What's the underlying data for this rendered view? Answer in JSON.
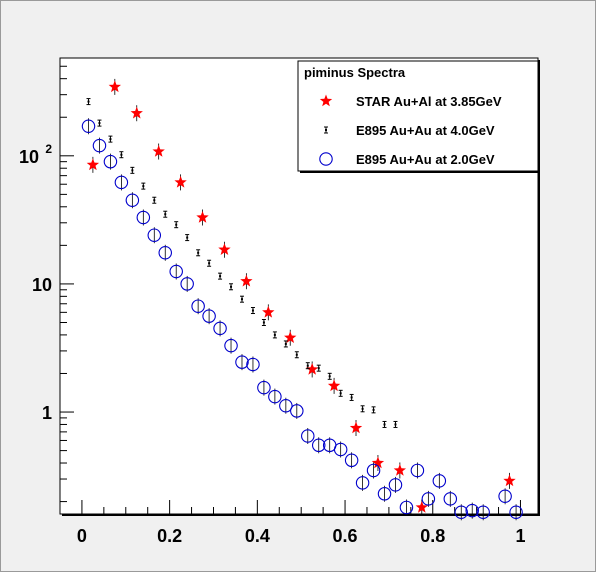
{
  "chart_data": {
    "type": "scatter",
    "title": "",
    "xlabel": "",
    "ylabel": "",
    "xlim": [
      -0.05,
      1.04
    ],
    "ylim": [
      0.16,
      580
    ],
    "yscale": "log",
    "grid": false,
    "legend_placement": "top-right",
    "x_ticks": [
      {
        "v": 0,
        "label": "0"
      },
      {
        "v": 0.2,
        "label": "0.2"
      },
      {
        "v": 0.4,
        "label": "0.4"
      },
      {
        "v": 0.6,
        "label": "0.6"
      },
      {
        "v": 0.8,
        "label": "0.8"
      },
      {
        "v": 1,
        "label": "1"
      }
    ],
    "y_ticks": [
      {
        "v": 1,
        "label": "1"
      },
      {
        "v": 10,
        "label": "10"
      },
      {
        "v": 100,
        "label": "10",
        "exp": "2"
      }
    ],
    "legend": {
      "title": "piminus Spectra",
      "entries": [
        {
          "label": "STAR Au+Al at 3.85GeV",
          "marker": "star",
          "color": "#ff0000"
        },
        {
          "label": "E895 Au+Au at 4.0GeV",
          "marker": "dot",
          "color": "#000000"
        },
        {
          "label": "E895 Au+Au at 2.0GeV",
          "marker": "circle",
          "color": "#0000cc"
        }
      ]
    },
    "series": [
      {
        "name": "STAR Au+Al at 3.85GeV",
        "marker": "star",
        "color": "#ff0000",
        "points": [
          [
            0.025,
            85
          ],
          [
            0.075,
            345
          ],
          [
            0.125,
            215
          ],
          [
            0.175,
            108
          ],
          [
            0.225,
            62
          ],
          [
            0.275,
            33
          ],
          [
            0.325,
            18.5
          ],
          [
            0.375,
            10.5
          ],
          [
            0.425,
            6.0
          ],
          [
            0.475,
            3.8
          ],
          [
            0.525,
            2.15
          ],
          [
            0.575,
            1.6
          ],
          [
            0.625,
            0.75
          ],
          [
            0.675,
            0.4
          ],
          [
            0.725,
            0.35
          ],
          [
            0.775,
            0.18
          ],
          [
            0.975,
            0.29
          ]
        ]
      },
      {
        "name": "E895 Au+Au at 4.0GeV",
        "marker": "dot",
        "color": "#000000",
        "points": [
          [
            0.015,
            265
          ],
          [
            0.04,
            180
          ],
          [
            0.065,
            135
          ],
          [
            0.09,
            102
          ],
          [
            0.115,
            77
          ],
          [
            0.14,
            58
          ],
          [
            0.165,
            45
          ],
          [
            0.19,
            35
          ],
          [
            0.215,
            29
          ],
          [
            0.24,
            23
          ],
          [
            0.265,
            17.5
          ],
          [
            0.29,
            14.5
          ],
          [
            0.315,
            11.5
          ],
          [
            0.34,
            9.5
          ],
          [
            0.365,
            7.6
          ],
          [
            0.39,
            6.2
          ],
          [
            0.415,
            5.0
          ],
          [
            0.44,
            4.0
          ],
          [
            0.465,
            3.4
          ],
          [
            0.49,
            2.8
          ],
          [
            0.515,
            2.3
          ],
          [
            0.54,
            2.2
          ],
          [
            0.565,
            1.9
          ],
          [
            0.59,
            1.4
          ],
          [
            0.615,
            1.3
          ],
          [
            0.64,
            1.06
          ],
          [
            0.665,
            1.04
          ],
          [
            0.69,
            0.8
          ],
          [
            0.715,
            0.8
          ]
        ]
      },
      {
        "name": "E895 Au+Au at 2.0GeV",
        "marker": "circle",
        "color": "#0000cc",
        "points": [
          [
            0.015,
            170
          ],
          [
            0.04,
            120
          ],
          [
            0.065,
            90
          ],
          [
            0.09,
            62
          ],
          [
            0.115,
            45
          ],
          [
            0.14,
            33
          ],
          [
            0.165,
            24
          ],
          [
            0.19,
            17.5
          ],
          [
            0.215,
            12.5
          ],
          [
            0.24,
            10.0
          ],
          [
            0.265,
            6.7
          ],
          [
            0.29,
            5.6
          ],
          [
            0.315,
            4.5
          ],
          [
            0.34,
            3.3
          ],
          [
            0.365,
            2.45
          ],
          [
            0.39,
            2.35
          ],
          [
            0.415,
            1.55
          ],
          [
            0.44,
            1.32
          ],
          [
            0.465,
            1.12
          ],
          [
            0.49,
            1.02
          ],
          [
            0.515,
            0.65
          ],
          [
            0.54,
            0.55
          ],
          [
            0.565,
            0.55
          ],
          [
            0.59,
            0.51
          ],
          [
            0.615,
            0.42
          ],
          [
            0.64,
            0.28
          ],
          [
            0.665,
            0.35
          ],
          [
            0.69,
            0.23
          ],
          [
            0.715,
            0.27
          ],
          [
            0.74,
            0.18
          ],
          [
            0.765,
            0.35
          ],
          [
            0.79,
            0.21
          ],
          [
            0.815,
            0.29
          ],
          [
            0.84,
            0.21
          ],
          [
            0.865,
            0.165
          ],
          [
            0.89,
            0.17
          ],
          [
            0.915,
            0.165
          ],
          [
            0.965,
            0.22
          ],
          [
            0.99,
            0.165
          ]
        ]
      }
    ]
  }
}
